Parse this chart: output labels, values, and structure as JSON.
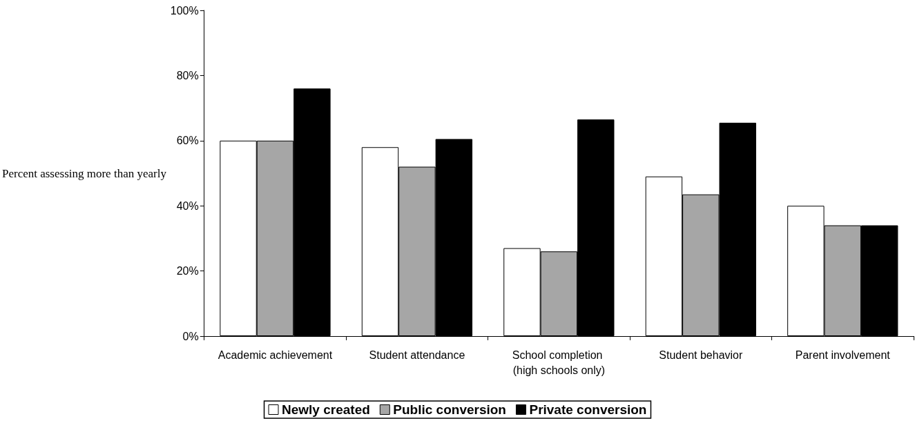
{
  "chart_data": {
    "type": "bar",
    "ylabel": "Percent assessing more than yearly",
    "categories": [
      "Academic achievement",
      "Student attendance",
      "School completion (high schools only)",
      "Student behavior",
      "Parent involvement"
    ],
    "series": [
      {
        "name": "Newly created",
        "color": "#ffffff",
        "values": [
          60,
          58,
          27,
          49,
          40
        ]
      },
      {
        "name": "Public conversion",
        "color": "#a6a6a6",
        "values": [
          60,
          52,
          26,
          43.5,
          34
        ]
      },
      {
        "name": "Private conversion",
        "color": "#000000",
        "values": [
          76,
          60.5,
          66.5,
          65.5,
          34
        ]
      }
    ],
    "ylim": [
      0,
      100
    ],
    "yticks": [
      {
        "value": 0,
        "label": "0%"
      },
      {
        "value": 20,
        "label": "20%"
      },
      {
        "value": 40,
        "label": "40%"
      },
      {
        "value": 60,
        "label": "60%"
      },
      {
        "value": 80,
        "label": "80%"
      },
      {
        "value": 100,
        "label": "100%"
      }
    ],
    "grid": false,
    "legend": "bottom"
  }
}
